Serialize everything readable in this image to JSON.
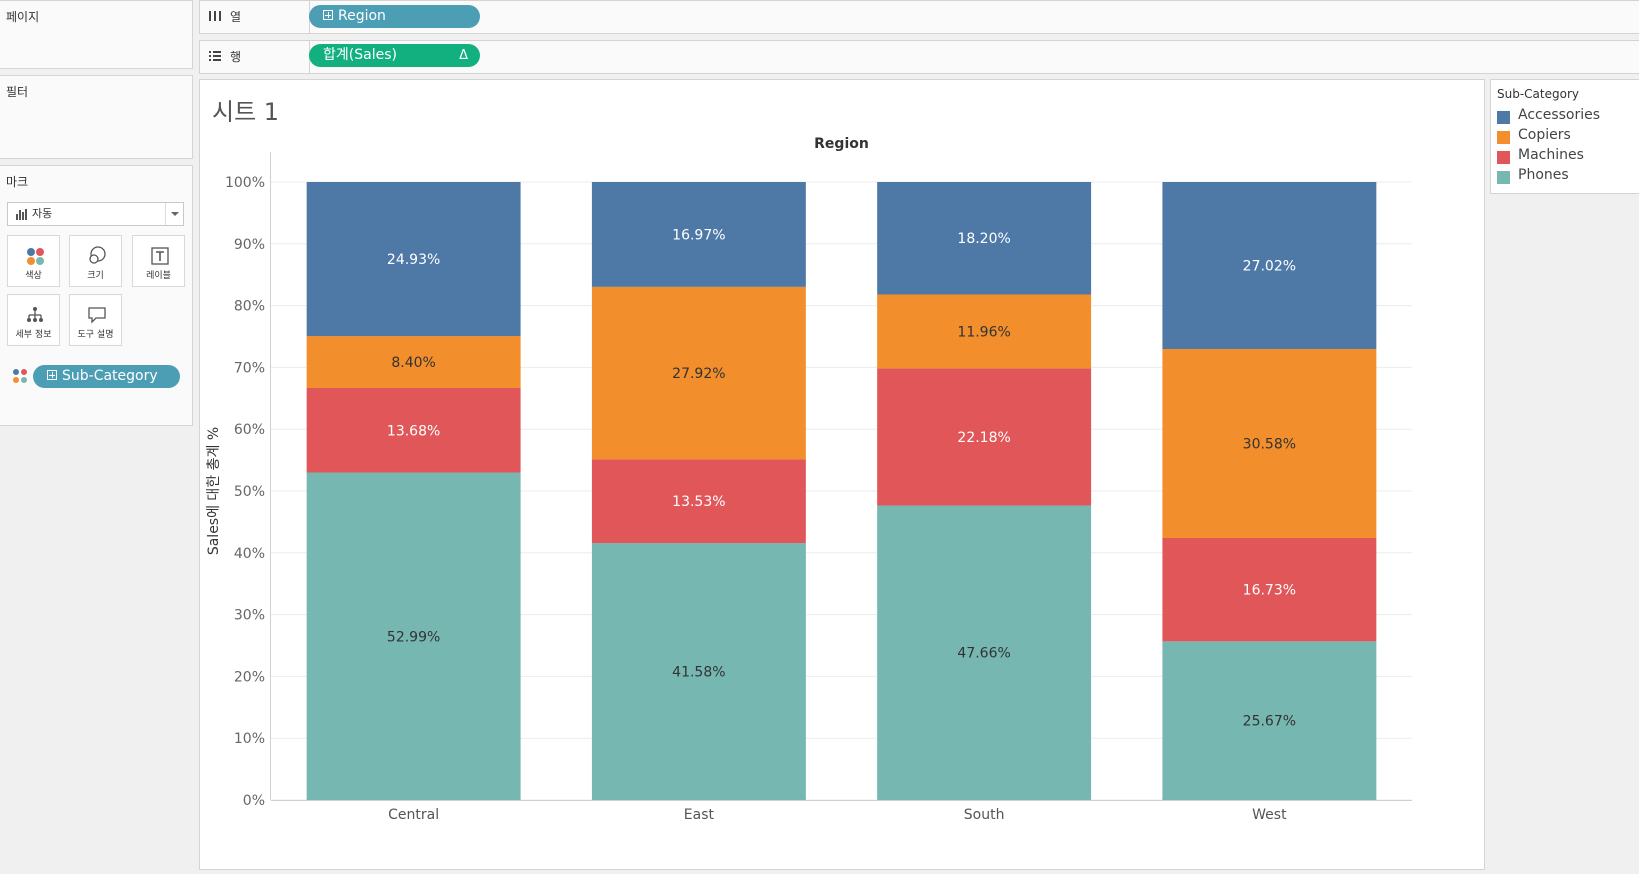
{
  "panels": {
    "pages_title": "페이지",
    "filters_title": "필터",
    "marks_title": "마크",
    "mark_type": "자동",
    "mark_buttons": {
      "color": "색상",
      "size": "크기",
      "label": "레이블",
      "detail": "세부 정보",
      "tooltip": "도구 설명"
    },
    "color_pill": "Sub-Category"
  },
  "shelves": {
    "columns_label": "열",
    "columns_pill": "Region",
    "rows_label": "행",
    "rows_pill": "합계(Sales)",
    "rows_pill_flag": "Δ"
  },
  "sheet": {
    "title": "시트 1"
  },
  "legend": {
    "title": "Sub-Category",
    "items": [
      {
        "name": "Accessories",
        "color": "#4e79a7"
      },
      {
        "name": "Copiers",
        "color": "#f28e2b"
      },
      {
        "name": "Machines",
        "color": "#e15759"
      },
      {
        "name": "Phones",
        "color": "#76b7b2"
      }
    ]
  },
  "chart_data": {
    "type": "bar",
    "stacked": true,
    "title": "Region",
    "ylabel": "Sales에 대한 총계 %",
    "ylim": [
      0,
      100
    ],
    "yticks": [
      "0%",
      "10%",
      "20%",
      "30%",
      "40%",
      "50%",
      "60%",
      "70%",
      "80%",
      "90%",
      "100%"
    ],
    "categories": [
      "Central",
      "East",
      "South",
      "West"
    ],
    "series": [
      {
        "name": "Phones",
        "color": "#76b7b2",
        "label_color": "#333333",
        "values": [
          52.99,
          41.58,
          47.66,
          25.67
        ]
      },
      {
        "name": "Machines",
        "color": "#e15759",
        "label_color": "#ffffff",
        "values": [
          13.68,
          13.53,
          22.18,
          16.73
        ]
      },
      {
        "name": "Copiers",
        "color": "#f28e2b",
        "label_color": "#333333",
        "values": [
          8.4,
          27.92,
          11.96,
          30.58
        ]
      },
      {
        "name": "Accessories",
        "color": "#4e79a7",
        "label_color": "#ffffff",
        "values": [
          24.93,
          16.97,
          18.2,
          27.02
        ]
      }
    ],
    "data_labels": [
      [
        "52.99%",
        "41.58%",
        "47.66%",
        "25.67%"
      ],
      [
        "13.68%",
        "13.53%",
        "22.18%",
        "16.73%"
      ],
      [
        "8.40%",
        "27.92%",
        "11.96%",
        "30.58%"
      ],
      [
        "24.93%",
        "16.97%",
        "18.20%",
        "27.02%"
      ]
    ],
    "grid": true,
    "legend_position": "right"
  }
}
